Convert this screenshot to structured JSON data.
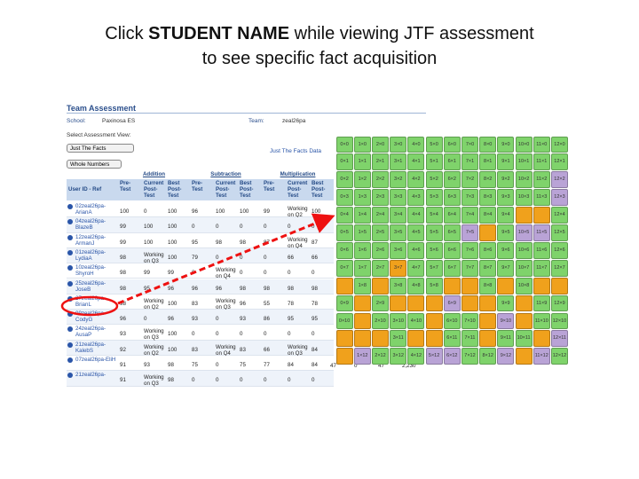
{
  "slide": {
    "title_line1": [
      "Click ",
      "STUDENT NAME",
      " while viewing JTF assessment"
    ],
    "title_line2": "to see specific fact acquisition"
  },
  "panel": {
    "title": "Team Assessment",
    "school_label": "School:",
    "school": "Paxinosa ES",
    "team_label": "Team:",
    "team": "zeal26pa",
    "view_label": "Select Assessment View:",
    "view": "Just The Facts",
    "data_link": "Just The Facts Data",
    "number_set": "Whole Numbers"
  },
  "table": {
    "groups": [
      "Addition",
      "Subtraction",
      "Multiplication"
    ],
    "columns": [
      "User ID - Ref",
      "Pre-Test",
      "Current Post-Test",
      "Best Post-Test"
    ],
    "rows": [
      [
        "02zeal26pa-ArianA",
        100,
        0,
        100,
        96,
        100,
        100,
        99,
        "Working on Q2",
        100
      ],
      [
        "04zeal26pa-BlazeB",
        99,
        100,
        100,
        0,
        0,
        0,
        0,
        0,
        0
      ],
      [
        "12zeal26pa-ArmanJ",
        99,
        100,
        100,
        95,
        98,
        98,
        87,
        "Working on Q4",
        87
      ],
      [
        "01zeal26pa-LydiaA",
        98,
        "Working on Q3",
        100,
        79,
        0,
        0,
        0,
        66,
        66
      ],
      [
        "10zeal26pa-ShyroH",
        98,
        99,
        99,
        0,
        "Working on Q4",
        0,
        0,
        0,
        0
      ],
      [
        "25zeal26pa-JoseB",
        98,
        95,
        96,
        96,
        96,
        98,
        98,
        98,
        98
      ],
      [
        "27zeal26pa-BrianL",
        98,
        "Working on Q2",
        100,
        83,
        "Working on Q3",
        96,
        55,
        78,
        78
      ],
      [
        "09zeal26pa-CodyG",
        96,
        0,
        96,
        93,
        0,
        93,
        86,
        95,
        95
      ],
      [
        "24zeal26pa-AusaP",
        93,
        "Working on Q3",
        100,
        0,
        0,
        0,
        0,
        0,
        0
      ],
      [
        "21zeal26pa-KalebS",
        92,
        "Working on Q2",
        100,
        83,
        "Working on Q4",
        83,
        66,
        "Working on Q3",
        84
      ],
      [
        "07zeal26pa-EliH",
        91,
        93,
        98,
        75,
        0,
        75,
        77,
        84,
        84
      ],
      [
        "21zeal26pa-",
        91,
        "Working on Q3",
        98,
        0,
        0,
        0,
        0,
        0,
        0
      ]
    ],
    "extra": [
      "47",
      "0",
      "47",
      "2,230"
    ]
  },
  "grid": {
    "labels": [
      [
        "0×0",
        "1×0",
        "2×0",
        "3×0",
        "4×0",
        "5×0",
        "6×0",
        "7×0",
        "8×0",
        "9×0",
        "10×0",
        "11×0",
        "12×0"
      ],
      [
        "0×1",
        "1×1",
        "2×1",
        "3×1",
        "4×1",
        "5×1",
        "6×1",
        "7×1",
        "8×1",
        "9×1",
        "10×1",
        "11×1",
        "12×1"
      ],
      [
        "0×2",
        "1×2",
        "2×2",
        "3×2",
        "4×2",
        "5×2",
        "6×2",
        "7×2",
        "8×2",
        "9×2",
        "10×2",
        "11×2",
        "12×2"
      ],
      [
        "0×3",
        "1×3",
        "2×3",
        "3×3",
        "4×3",
        "5×3",
        "6×3",
        "7×3",
        "8×3",
        "9×3",
        "10×3",
        "11×3",
        "12×3"
      ],
      [
        "0×4",
        "1×4",
        "2×4",
        "3×4",
        "4×4",
        "5×4",
        "6×4",
        "7×4",
        "8×4",
        "9×4",
        null,
        null,
        "12×4"
      ],
      [
        "0×5",
        "1×5",
        "2×5",
        "3×5",
        "4×5",
        "5×5",
        "6×5",
        "7×5",
        null,
        "9×5",
        "10×5",
        "11×5",
        "12×5"
      ],
      [
        "0×6",
        "1×6",
        "2×6",
        "3×6",
        "4×6",
        "5×6",
        "6×6",
        "7×6",
        "8×6",
        "9×6",
        "10×6",
        "11×6",
        "12×6"
      ],
      [
        "0×7",
        "1×7",
        "2×7",
        "3×7",
        "4×7",
        "5×7",
        "6×7",
        "7×7",
        "8×7",
        "9×7",
        "10×7",
        "11×7",
        "12×7"
      ],
      [
        null,
        "1×8",
        null,
        "3×8",
        "4×8",
        "5×8",
        null,
        null,
        "8×8",
        null,
        "10×8",
        null,
        null
      ],
      [
        "0×9",
        null,
        "2×9",
        null,
        null,
        null,
        "6×9",
        null,
        null,
        "9×9",
        null,
        "11×9",
        "12×9"
      ],
      [
        "0×10",
        null,
        "2×10",
        "3×10",
        "4×10",
        null,
        "6×10",
        "7×10",
        null,
        "9×10",
        null,
        "11×10",
        "12×10"
      ],
      [
        null,
        null,
        null,
        "3×11",
        null,
        null,
        "6×11",
        "7×11",
        null,
        "9×11",
        "10×11",
        null,
        "12×11"
      ],
      [
        null,
        "1×12",
        "2×12",
        "3×12",
        "4×12",
        "5×12",
        "6×12",
        "7×12",
        "8×12",
        "9×12",
        null,
        "11×12",
        "12×12"
      ]
    ],
    "colors": [
      [
        "#7fd36b",
        "#7fd36b",
        "#7fd36b",
        "#7fd36b",
        "#7fd36b",
        "#7fd36b",
        "#7fd36b",
        "#7fd36b",
        "#7fd36b",
        "#7fd36b",
        "#7fd36b",
        "#7fd36b",
        "#7fd36b"
      ],
      [
        "#7fd36b",
        "#7fd36b",
        "#7fd36b",
        "#7fd36b",
        "#7fd36b",
        "#7fd36b",
        "#7fd36b",
        "#7fd36b",
        "#7fd36b",
        "#7fd36b",
        "#7fd36b",
        "#7fd36b",
        "#7fd36b"
      ],
      [
        "#7fd36b",
        "#7fd36b",
        "#7fd36b",
        "#7fd36b",
        "#7fd36b",
        "#7fd36b",
        "#7fd36b",
        "#7fd36b",
        "#7fd36b",
        "#7fd36b",
        "#7fd36b",
        "#7fd36b",
        "#b9a3d6"
      ],
      [
        "#7fd36b",
        "#7fd36b",
        "#7fd36b",
        "#7fd36b",
        "#7fd36b",
        "#7fd36b",
        "#7fd36b",
        "#7fd36b",
        "#7fd36b",
        "#7fd36b",
        "#7fd36b",
        "#7fd36b",
        "#b9a3d6"
      ],
      [
        "#7fd36b",
        "#7fd36b",
        "#7fd36b",
        "#7fd36b",
        "#7fd36b",
        "#7fd36b",
        "#7fd36b",
        "#7fd36b",
        "#7fd36b",
        "#7fd36b",
        "#f0a11c",
        "#f0a11c",
        "#7fd36b"
      ],
      [
        "#7fd36b",
        "#7fd36b",
        "#7fd36b",
        "#7fd36b",
        "#7fd36b",
        "#7fd36b",
        "#7fd36b",
        "#b9a3d6",
        "#f0a11c",
        "#7fd36b",
        "#b9a3d6",
        "#b9a3d6",
        "#7fd36b"
      ],
      [
        "#7fd36b",
        "#7fd36b",
        "#7fd36b",
        "#7fd36b",
        "#7fd36b",
        "#7fd36b",
        "#7fd36b",
        "#7fd36b",
        "#7fd36b",
        "#7fd36b",
        "#7fd36b",
        "#7fd36b",
        "#7fd36b"
      ],
      [
        "#7fd36b",
        "#7fd36b",
        "#7fd36b",
        "#f0a11c",
        "#7fd36b",
        "#7fd36b",
        "#7fd36b",
        "#7fd36b",
        "#7fd36b",
        "#7fd36b",
        "#7fd36b",
        "#7fd36b",
        "#7fd36b"
      ],
      [
        "#f0a11c",
        "#7fd36b",
        "#f0a11c",
        "#7fd36b",
        "#7fd36b",
        "#7fd36b",
        "#f0a11c",
        "#f0a11c",
        "#7fd36b",
        "#f0a11c",
        "#7fd36b",
        "#f0a11c",
        "#f0a11c"
      ],
      [
        "#7fd36b",
        "#f0a11c",
        "#7fd36b",
        "#f0a11c",
        "#f0a11c",
        "#f0a11c",
        "#b9a3d6",
        "#f0a11c",
        "#f0a11c",
        "#7fd36b",
        "#f0a11c",
        "#7fd36b",
        "#7fd36b"
      ],
      [
        "#7fd36b",
        "#f0a11c",
        "#7fd36b",
        "#7fd36b",
        "#7fd36b",
        "#f0a11c",
        "#7fd36b",
        "#7fd36b",
        "#f0a11c",
        "#b9a3d6",
        "#f0a11c",
        "#7fd36b",
        "#7fd36b"
      ],
      [
        "#f0a11c",
        "#f0a11c",
        "#f0a11c",
        "#7fd36b",
        "#f0a11c",
        "#f0a11c",
        "#7fd36b",
        "#7fd36b",
        "#f0a11c",
        "#7fd36b",
        "#7fd36b",
        "#f0a11c",
        "#b9a3d6"
      ],
      [
        "#f0a11c",
        "#b9a3d6",
        "#7fd36b",
        "#7fd36b",
        "#7fd36b",
        "#b9a3d6",
        "#b9a3d6",
        "#7fd36b",
        "#7fd36b",
        "#b9a3d6",
        "#f0a11c",
        "#b9a3d6",
        "#7fd36b"
      ]
    ]
  }
}
